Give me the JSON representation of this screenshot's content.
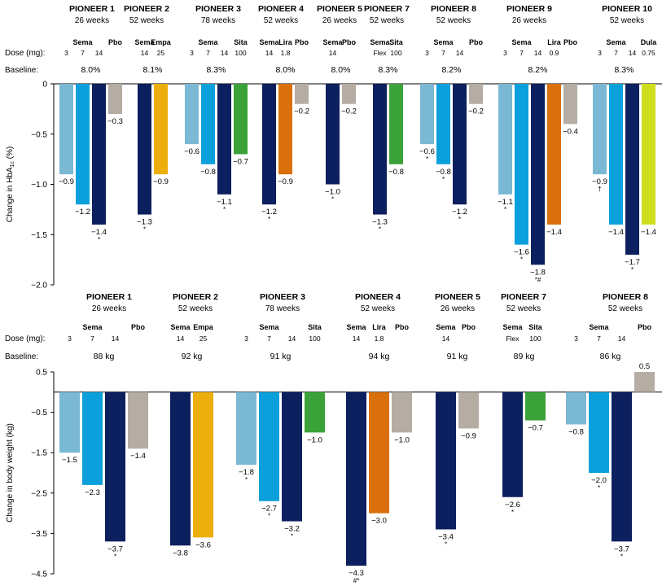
{
  "colors": {
    "sema3": "#7ab8d3",
    "sema7": "#0ba0dc",
    "sema14": "#0c1f5e",
    "pbo": "#b5aca3",
    "empa": "#ebae0c",
    "sita": "#3aa238",
    "lira": "#d9700b",
    "dula": "#cfde1c",
    "axis": "#000000"
  },
  "chart_data": [
    {
      "type": "bar",
      "title": "Change in HbA1c",
      "ylabel": "Change in HbA1c (%)",
      "ylim": [
        -2.0,
        0
      ],
      "yticks": [
        0,
        -0.5,
        -1.0,
        -1.5,
        -2.0
      ],
      "ytick_labels": [
        "0",
        "−0.5",
        "−1.0",
        "−1.5",
        "−2.0"
      ],
      "dose_label": "Dose (mg):",
      "baseline_label": "Baseline:",
      "groups": [
        {
          "trial": "PIONEER 1",
          "duration": "26 weeks",
          "baseline": "8.0%",
          "headers": [
            {
              "text": "Sema",
              "span": [
                0,
                2
              ]
            },
            {
              "text": "Pbo",
              "span": [
                3,
                3
              ]
            }
          ],
          "bars": [
            {
              "dose": "3",
              "color": "sema3",
              "value": -0.9,
              "label": "−0.9",
              "mark": ""
            },
            {
              "dose": "7",
              "color": "sema7",
              "value": -1.2,
              "label": "−1.2",
              "mark": ""
            },
            {
              "dose": "14",
              "color": "sema14",
              "value": -1.4,
              "label": "−1.4",
              "mark": "*"
            },
            {
              "dose": "",
              "color": "pbo",
              "value": -0.3,
              "label": "−0.3",
              "mark": ""
            }
          ]
        },
        {
          "trial": "PIONEER 2",
          "duration": "52 weeks",
          "baseline": "8.1%",
          "headers": [
            {
              "text": "Sema",
              "span": [
                0,
                0
              ]
            },
            {
              "text": "Empa",
              "span": [
                1,
                1
              ]
            }
          ],
          "bars": [
            {
              "dose": "14",
              "color": "sema14",
              "value": -1.3,
              "label": "−1.3",
              "mark": "*"
            },
            {
              "dose": "25",
              "color": "empa",
              "value": -0.9,
              "label": "−0.9",
              "mark": ""
            }
          ]
        },
        {
          "trial": "PIONEER 3",
          "duration": "78 weeks",
          "baseline": "8.3%",
          "headers": [
            {
              "text": "Sema",
              "span": [
                0,
                2
              ]
            },
            {
              "text": "Sita",
              "span": [
                3,
                3
              ]
            }
          ],
          "bars": [
            {
              "dose": "3",
              "color": "sema3",
              "value": -0.6,
              "label": "−0.6",
              "mark": ""
            },
            {
              "dose": "7",
              "color": "sema7",
              "value": -0.8,
              "label": "−0.8",
              "mark": ""
            },
            {
              "dose": "14",
              "color": "sema14",
              "value": -1.1,
              "label": "−1.1",
              "mark": "*"
            },
            {
              "dose": "100",
              "color": "sita",
              "value": -0.7,
              "label": "−0.7",
              "mark": ""
            }
          ]
        },
        {
          "trial": "PIONEER 4",
          "duration": "52 weeks",
          "baseline": "8.0%",
          "headers": [
            {
              "text": "Sema",
              "span": [
                0,
                0
              ]
            },
            {
              "text": "Lira",
              "span": [
                1,
                1
              ]
            },
            {
              "text": "Pbo",
              "span": [
                2,
                2
              ]
            }
          ],
          "bars": [
            {
              "dose": "14",
              "color": "sema14",
              "value": -1.2,
              "label": "−1.2",
              "mark": "*"
            },
            {
              "dose": "1.8",
              "color": "lira",
              "value": -0.9,
              "label": "−0.9",
              "mark": ""
            },
            {
              "dose": "",
              "color": "pbo",
              "value": -0.2,
              "label": "−0.2",
              "mark": ""
            }
          ]
        },
        {
          "trial": "PIONEER 5",
          "duration": "26 weeks",
          "baseline": "8.0%",
          "headers": [
            {
              "text": "Sema",
              "span": [
                0,
                0
              ]
            },
            {
              "text": "Pbo",
              "span": [
                1,
                1
              ]
            }
          ],
          "bars": [
            {
              "dose": "14",
              "color": "sema14",
              "value": -1.0,
              "label": "−1.0",
              "mark": "*"
            },
            {
              "dose": "",
              "color": "pbo",
              "value": -0.2,
              "label": "−0.2",
              "mark": ""
            }
          ]
        },
        {
          "trial": "PIONEER 7",
          "duration": "52 weeks",
          "baseline": "8.3%",
          "headers": [
            {
              "text": "Sema",
              "span": [
                0,
                0
              ]
            },
            {
              "text": "Sita",
              "span": [
                1,
                1
              ]
            }
          ],
          "bars": [
            {
              "dose": "Flex",
              "color": "sema14",
              "value": -1.3,
              "label": "−1.3",
              "mark": "*"
            },
            {
              "dose": "100",
              "color": "sita",
              "value": -0.8,
              "label": "−0.8",
              "mark": ""
            }
          ]
        },
        {
          "trial": "PIONEER 8",
          "duration": "52 weeks",
          "baseline": "8.2%",
          "headers": [
            {
              "text": "Sema",
              "span": [
                0,
                2
              ]
            },
            {
              "text": "Pbo",
              "span": [
                3,
                3
              ]
            }
          ],
          "bars": [
            {
              "dose": "3",
              "color": "sema3",
              "value": -0.6,
              "label": "−0.6",
              "mark": "*"
            },
            {
              "dose": "7",
              "color": "sema7",
              "value": -0.8,
              "label": "−0.8",
              "mark": "*"
            },
            {
              "dose": "14",
              "color": "sema14",
              "value": -1.2,
              "label": "−1.2",
              "mark": "*"
            },
            {
              "dose": "",
              "color": "pbo",
              "value": -0.2,
              "label": "−0.2",
              "mark": ""
            }
          ]
        },
        {
          "trial": "PIONEER 9",
          "duration": "26 weeks",
          "baseline": "8.2%",
          "headers": [
            {
              "text": "Sema",
              "span": [
                0,
                2
              ]
            },
            {
              "text": "Lira",
              "span": [
                3,
                3
              ]
            },
            {
              "text": "Pbo",
              "span": [
                4,
                4
              ]
            }
          ],
          "bars": [
            {
              "dose": "3",
              "color": "sema3",
              "value": -1.1,
              "label": "−1.1",
              "mark": "*"
            },
            {
              "dose": "7",
              "color": "sema7",
              "value": -1.6,
              "label": "−1.6",
              "mark": "*"
            },
            {
              "dose": "14",
              "color": "sema14",
              "value": -1.8,
              "label": "−1.8",
              "mark": "*#"
            },
            {
              "dose": "0.9",
              "color": "lira",
              "value": -1.4,
              "label": "−1.4",
              "mark": ""
            },
            {
              "dose": "",
              "color": "pbo",
              "value": -0.4,
              "label": "−0.4",
              "mark": ""
            }
          ]
        },
        {
          "trial": "PIONEER 10",
          "duration": "52 weeks",
          "baseline": "8.3%",
          "headers": [
            {
              "text": "Sema",
              "span": [
                0,
                2
              ]
            },
            {
              "text": "Dula",
              "span": [
                3,
                3
              ]
            }
          ],
          "bars": [
            {
              "dose": "3",
              "color": "sema3",
              "value": -0.9,
              "label": "−0.9",
              "mark": "†"
            },
            {
              "dose": "7",
              "color": "sema7",
              "value": -1.4,
              "label": "−1.4",
              "mark": ""
            },
            {
              "dose": "14",
              "color": "sema14",
              "value": -1.7,
              "label": "−1.7",
              "mark": "*"
            },
            {
              "dose": "0.75",
              "color": "dula",
              "value": -1.4,
              "label": "−1.4",
              "mark": ""
            }
          ]
        }
      ]
    },
    {
      "type": "bar",
      "title": "Change in body weight",
      "ylabel": "Change in body weight (kg)",
      "ylim": [
        -4.5,
        0.5
      ],
      "yticks": [
        0.5,
        -0.5,
        -1.5,
        -2.5,
        -3.5,
        -4.5
      ],
      "ytick_labels": [
        "0.5",
        "−0.5",
        "−1.5",
        "−2.5",
        "−3.5",
        "−4.5"
      ],
      "dose_label": "Dose (mg):",
      "baseline_label": "Baseline:",
      "groups": [
        {
          "trial": "PIONEER 1",
          "duration": "26 weeks",
          "baseline": "88 kg",
          "headers": [
            {
              "text": "Sema",
              "span": [
                0,
                2
              ]
            },
            {
              "text": "Pbo",
              "span": [
                3,
                3
              ]
            }
          ],
          "bars": [
            {
              "dose": "3",
              "color": "sema3",
              "value": -1.5,
              "label": "−1.5",
              "mark": ""
            },
            {
              "dose": "7",
              "color": "sema7",
              "value": -2.3,
              "label": "−2.3",
              "mark": ""
            },
            {
              "dose": "14",
              "color": "sema14",
              "value": -3.7,
              "label": "−3.7",
              "mark": "*"
            },
            {
              "dose": "",
              "color": "pbo",
              "value": -1.4,
              "label": "−1.4",
              "mark": ""
            }
          ]
        },
        {
          "trial": "PIONEER 2",
          "duration": "52 weeks",
          "baseline": "92 kg",
          "headers": [
            {
              "text": "Sema",
              "span": [
                0,
                0
              ]
            },
            {
              "text": "Empa",
              "span": [
                1,
                1
              ]
            }
          ],
          "bars": [
            {
              "dose": "14",
              "color": "sema14",
              "value": -3.8,
              "label": "−3.8",
              "mark": ""
            },
            {
              "dose": "25",
              "color": "empa",
              "value": -3.6,
              "label": "−3.6",
              "mark": ""
            }
          ]
        },
        {
          "trial": "PIONEER 3",
          "duration": "78 weeks",
          "baseline": "91 kg",
          "headers": [
            {
              "text": "Sema",
              "span": [
                0,
                2
              ]
            },
            {
              "text": "Sita",
              "span": [
                3,
                3
              ]
            }
          ],
          "bars": [
            {
              "dose": "3",
              "color": "sema3",
              "value": -1.8,
              "label": "−1.8",
              "mark": "*"
            },
            {
              "dose": "7",
              "color": "sema7",
              "value": -2.7,
              "label": "−2.7",
              "mark": "*"
            },
            {
              "dose": "14",
              "color": "sema14",
              "value": -3.2,
              "label": "−3.2",
              "mark": "*"
            },
            {
              "dose": "100",
              "color": "sita",
              "value": -1.0,
              "label": "−1.0",
              "mark": ""
            }
          ]
        },
        {
          "trial": "PIONEER 4",
          "duration": "52 weeks",
          "baseline": "94 kg",
          "headers": [
            {
              "text": "Sema",
              "span": [
                0,
                0
              ]
            },
            {
              "text": "Lira",
              "span": [
                1,
                1
              ]
            },
            {
              "text": "Pbo",
              "span": [
                2,
                2
              ]
            }
          ],
          "bars": [
            {
              "dose": "14",
              "color": "sema14",
              "value": -4.3,
              "label": "−4.3",
              "mark": "#*"
            },
            {
              "dose": "1.8",
              "color": "lira",
              "value": -3.0,
              "label": "−3.0",
              "mark": ""
            },
            {
              "dose": "",
              "color": "pbo",
              "value": -1.0,
              "label": "−1.0",
              "mark": ""
            }
          ]
        },
        {
          "trial": "PIONEER 5",
          "duration": "26 weeks",
          "baseline": "91 kg",
          "headers": [
            {
              "text": "Sema",
              "span": [
                0,
                0
              ]
            },
            {
              "text": "Pbo",
              "span": [
                1,
                1
              ]
            }
          ],
          "bars": [
            {
              "dose": "14",
              "color": "sema14",
              "value": -3.4,
              "label": "−3.4",
              "mark": "*"
            },
            {
              "dose": "",
              "color": "pbo",
              "value": -0.9,
              "label": "−0.9",
              "mark": ""
            }
          ]
        },
        {
          "trial": "PIONEER 7",
          "duration": "52 weeks",
          "baseline": "89 kg",
          "headers": [
            {
              "text": "Sema",
              "span": [
                0,
                0
              ]
            },
            {
              "text": "Sita",
              "span": [
                1,
                1
              ]
            }
          ],
          "bars": [
            {
              "dose": "Flex",
              "color": "sema14",
              "value": -2.6,
              "label": "−2.6",
              "mark": "*"
            },
            {
              "dose": "100",
              "color": "sita",
              "value": -0.7,
              "label": "−0.7",
              "mark": ""
            }
          ]
        },
        {
          "trial": "PIONEER 8",
          "duration": "52 weeks",
          "baseline": "86 kg",
          "headers": [
            {
              "text": "Sema",
              "span": [
                0,
                2
              ]
            },
            {
              "text": "Pbo",
              "span": [
                3,
                3
              ]
            }
          ],
          "bars": [
            {
              "dose": "3",
              "color": "sema3",
              "value": -0.8,
              "label": "−0.8",
              "mark": ""
            },
            {
              "dose": "7",
              "color": "sema7",
              "value": -2.0,
              "label": "−2.0",
              "mark": "*"
            },
            {
              "dose": "14",
              "color": "sema14",
              "value": -3.7,
              "label": "−3.7",
              "mark": "*"
            },
            {
              "dose": "",
              "color": "pbo",
              "value": 0.5,
              "label": "0.5",
              "mark": ""
            }
          ]
        }
      ]
    }
  ]
}
